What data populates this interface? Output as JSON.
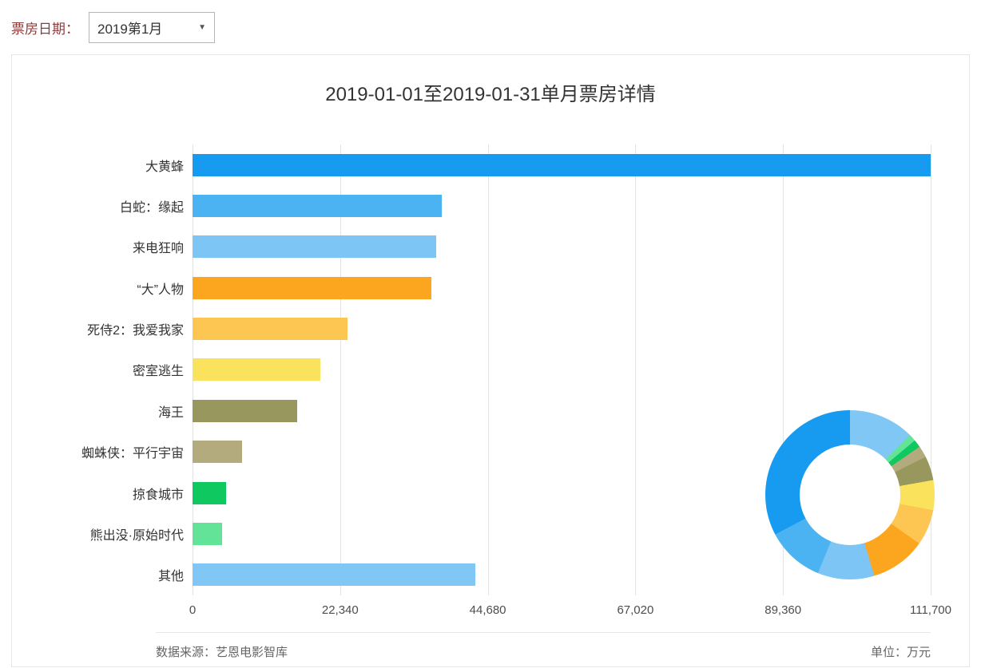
{
  "filter": {
    "label": "票房日期：",
    "selected_option": "2019第1月",
    "caret_icon": "▼"
  },
  "card": {
    "title": "2019-01-01至2019-01-31单月票房详情",
    "footer": {
      "source": "数据来源：艺恩电影智库",
      "unit": "单位：万元"
    }
  },
  "theme": {
    "filter_label_color": "#8d3c3c",
    "grid_color": "#e3e3e3",
    "border_color": "#e6e6e6",
    "text_color": "#333333",
    "muted_text_color": "#666666"
  },
  "chart_data": {
    "type": "bar",
    "orientation": "horizontal",
    "title": "2019-01-01至2019-01-31单月票房详情",
    "unit": "万元",
    "categories": [
      "大黄蜂",
      "白蛇：缘起",
      "来电狂响",
      "“大”人物",
      "死侍2：我爱我家",
      "密室逃生",
      "海王",
      "蜘蛛侠：平行宇宙",
      "掠食城市",
      "熊出没·原始时代",
      "其他"
    ],
    "values": [
      111700,
      37700,
      36900,
      36100,
      23400,
      19400,
      15800,
      7500,
      5100,
      4500,
      42800
    ],
    "colors": [
      "#169bf0",
      "#4cb3f2",
      "#7cc5f5",
      "#fca51e",
      "#fdc551",
      "#fae25c",
      "#98985e",
      "#b3ab7e",
      "#0fc860",
      "#63e398",
      "#81c7f5"
    ],
    "xlim": [
      0,
      111700
    ],
    "x_ticks": [
      "0",
      "22,340",
      "44,680",
      "67,020",
      "89,360",
      "111,700"
    ],
    "x_tick_values": [
      0,
      22340,
      44680,
      67020,
      89360,
      111700
    ],
    "grid": true,
    "legend": "none",
    "companion_pie": {
      "type": "donut",
      "position": "bottom-right overlay",
      "note": "shares categories, values and colors with the bar series; drawn clockwise from top in reverse category order"
    }
  }
}
